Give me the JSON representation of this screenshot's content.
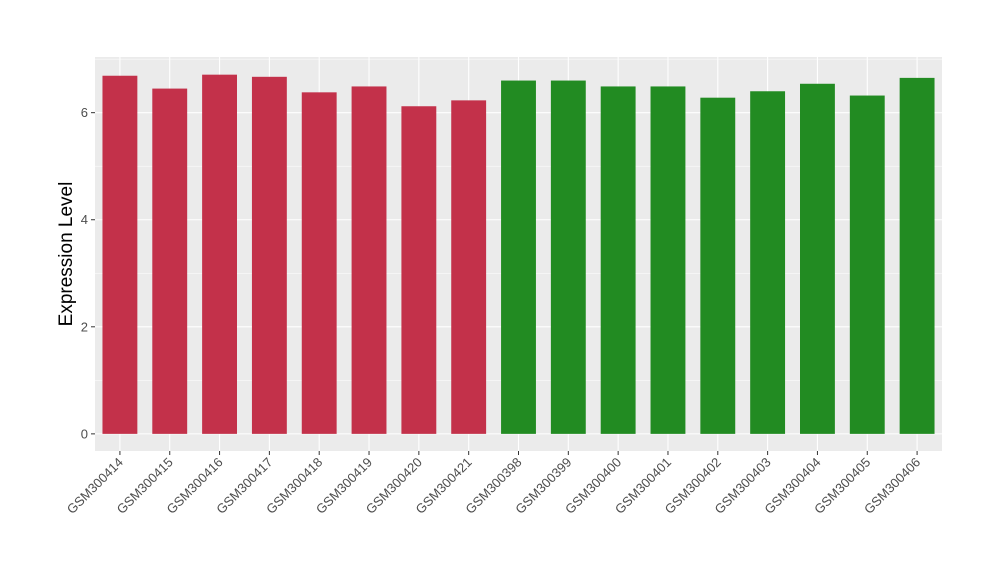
{
  "chart_data": {
    "type": "bar",
    "title": "",
    "xlabel": "",
    "ylabel": "Expression Level",
    "ylim": [
      -0.32,
      7.04
    ],
    "yticks": [
      0,
      2,
      4,
      6
    ],
    "grid": true,
    "legend": "none",
    "categories": [
      "GSM300414",
      "GSM300415",
      "GSM300416",
      "GSM300417",
      "GSM300418",
      "GSM300419",
      "GSM300420",
      "GSM300421",
      "GSM300398",
      "GSM300399",
      "GSM300400",
      "GSM300401",
      "GSM300402",
      "GSM300403",
      "GSM300404",
      "GSM300405",
      "GSM300406"
    ],
    "values": [
      6.69,
      6.45,
      6.71,
      6.67,
      6.38,
      6.49,
      6.12,
      6.23,
      6.6,
      6.6,
      6.49,
      6.49,
      6.28,
      6.4,
      6.54,
      6.32,
      6.65
    ],
    "group_colors": [
      "#c3314a",
      "#c3314a",
      "#c3314a",
      "#c3314a",
      "#c3314a",
      "#c3314a",
      "#c3314a",
      "#c3314a",
      "#228b22",
      "#228b22",
      "#228b22",
      "#228b22",
      "#228b22",
      "#228b22",
      "#228b22",
      "#228b22",
      "#228b22"
    ],
    "panel_background": "#ebebeb"
  }
}
